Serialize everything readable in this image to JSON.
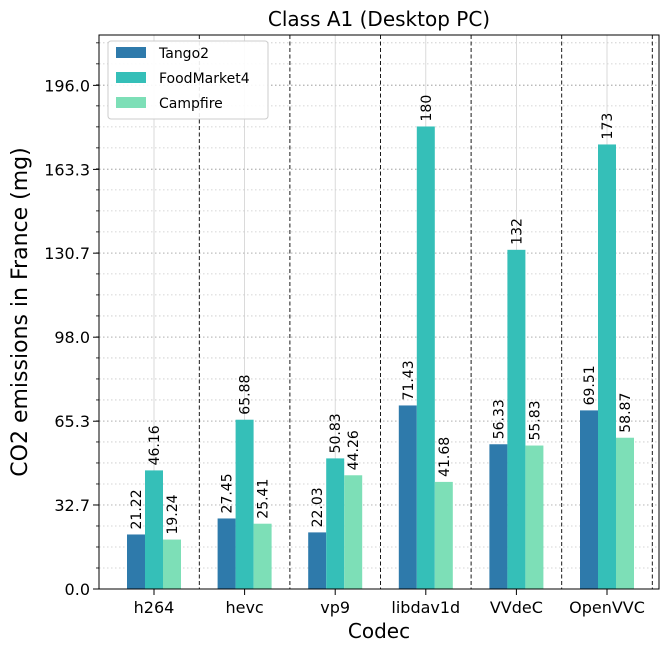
{
  "chart_data": {
    "type": "bar",
    "title": "Class A1 (Desktop PC)",
    "xlabel": "Codec",
    "ylabel": "CO2 emissions in France (mg)",
    "categories": [
      "h264",
      "hevc",
      "vp9",
      "libdav1d",
      "VVdeC",
      "OpenVVC"
    ],
    "series": [
      {
        "name": "Tango2",
        "color": "#2e7aab",
        "values": [
          21.22,
          27.45,
          22.03,
          71.43,
          56.33,
          69.51
        ],
        "labels": [
          "21.22",
          "27.45",
          "22.03",
          "71.43",
          "56.33",
          "69.51"
        ]
      },
      {
        "name": "FoodMarket4",
        "color": "#35bfb8",
        "values": [
          46.16,
          65.88,
          50.83,
          180,
          132,
          173
        ],
        "labels": [
          "46.16",
          "65.88",
          "50.83",
          "180",
          "132",
          "173"
        ]
      },
      {
        "name": "Campfire",
        "color": "#7ddfb7",
        "values": [
          19.24,
          25.41,
          44.26,
          41.68,
          55.83,
          58.87
        ],
        "labels": [
          "19.24",
          "25.41",
          "44.26",
          "41.68",
          "55.83",
          "58.87"
        ]
      }
    ],
    "ylim": [
      0,
      215.6
    ],
    "yticks": [
      0.0,
      32.7,
      65.3,
      98.0,
      130.7,
      163.3,
      196.0
    ],
    "ytick_labels": [
      "0.0",
      "32.7",
      "65.3",
      "98.0",
      "130.7",
      "163.3",
      "196.0"
    ],
    "grid": true,
    "legend_position": "top-left"
  }
}
